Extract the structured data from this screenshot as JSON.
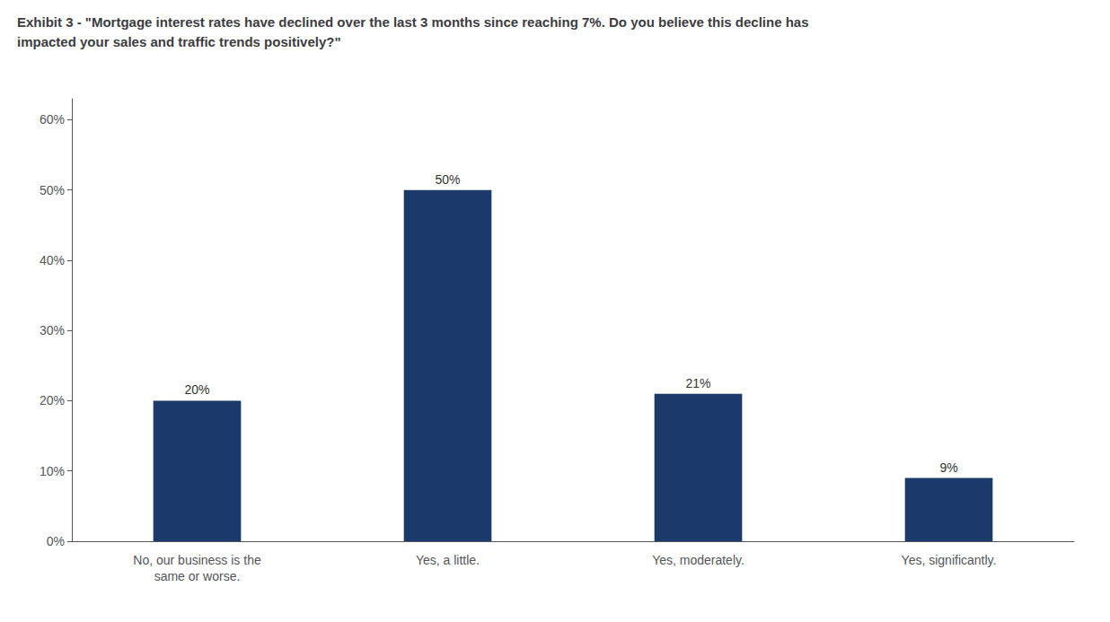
{
  "chart_data": {
    "type": "bar",
    "title": "Exhibit 3 - \"Mortgage interest rates have declined over the last 3 months since reaching 7%. Do you believe this decline has\nimpacted your sales and traffic trends positively?\"",
    "categories": [
      "No, our business is the\nsame or worse.",
      "Yes, a little.",
      "Yes, moderately.",
      "Yes, significantly."
    ],
    "values": [
      20,
      50,
      21,
      9
    ],
    "value_labels": [
      "20%",
      "50%",
      "21%",
      "9%"
    ],
    "data_labels": true,
    "color": "#1B3A6B",
    "ylim": [
      0,
      63
    ],
    "yticks": [
      {
        "value": 0,
        "label": "0%"
      },
      {
        "value": 10,
        "label": "10%"
      },
      {
        "value": 20,
        "label": "20%"
      },
      {
        "value": 30,
        "label": "30%"
      },
      {
        "value": 40,
        "label": "40%"
      },
      {
        "value": 50,
        "label": "50%"
      },
      {
        "value": 60,
        "label": "60%"
      }
    ],
    "grid": false
  }
}
